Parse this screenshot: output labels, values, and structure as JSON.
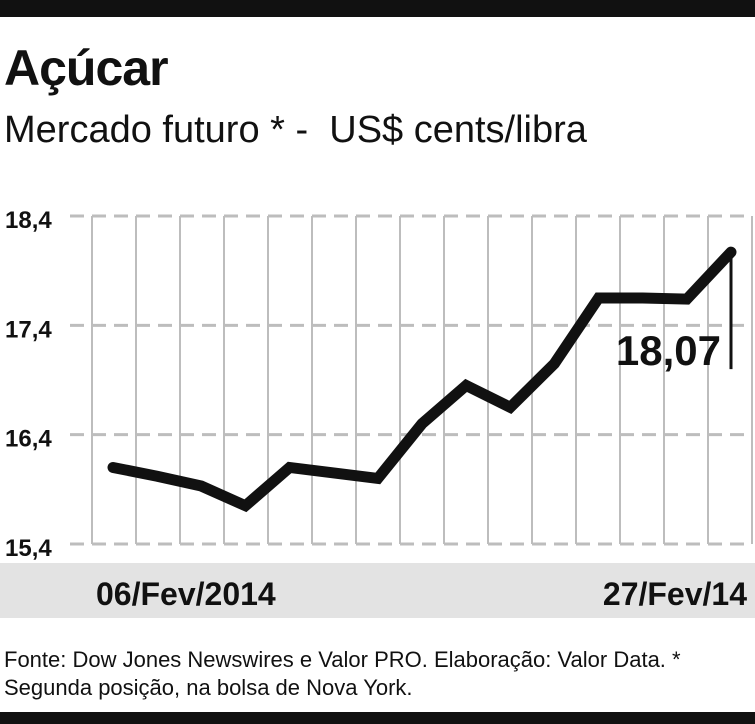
{
  "header": {
    "title": "Açúcar",
    "subtitle": "Mercado futuro * -  US$ cents/libra"
  },
  "footer": {
    "source": "Fonte: Dow Jones Newswires e Valor PRO. Elaboração: Valor Data. * Segunda posição, na bolsa de Nova York."
  },
  "colors": {
    "line": "#111111",
    "grid": "#bdbdbd",
    "date_band": "#e3e3e3"
  },
  "chart_data": {
    "type": "line",
    "title": "Açúcar",
    "subtitle": "Mercado futuro * -  US$ cents/libra",
    "xlabel": "",
    "ylabel": "",
    "x_start_label": "06/Fev/2014",
    "x_end_label": "27/Fev/14",
    "ylim": [
      15.4,
      18.4
    ],
    "yticks": [
      15.4,
      16.4,
      17.4,
      18.4
    ],
    "ytick_labels": [
      "15,4",
      "16,4",
      "17,4",
      "18,4"
    ],
    "grid": true,
    "series": [
      {
        "values": [
          16.1,
          16.02,
          15.93,
          15.75,
          16.1,
          16.05,
          16.0,
          16.5,
          16.85,
          16.65,
          17.05,
          17.65,
          17.65,
          17.64,
          18.07
        ]
      }
    ],
    "last_value_label": "18,07"
  }
}
